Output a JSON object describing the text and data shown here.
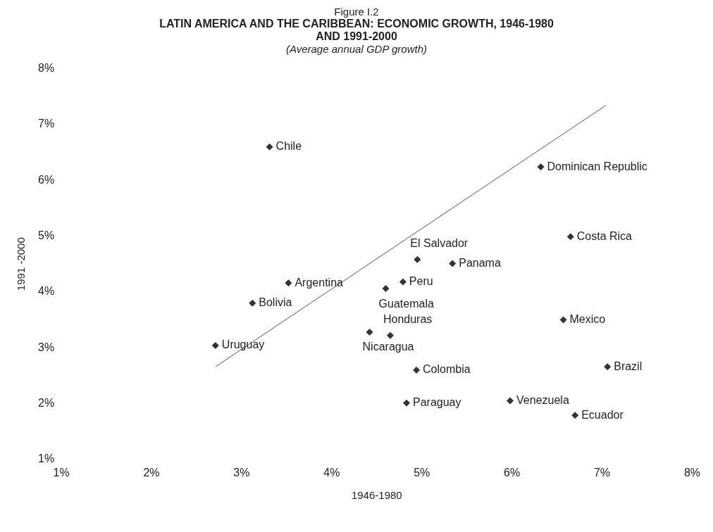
{
  "chart_data": {
    "type": "scatter",
    "title": "LATIN AMERICA AND THE CARIBBEAN: ECONOMIC GROWTH, 1946-1980 AND 1991-2000",
    "subtitle": "(Average annual GDP growth)",
    "xlabel": "1946-1980",
    "ylabel": "1991 -2000",
    "xlim": [
      1,
      8
    ],
    "ylim": [
      1,
      8
    ],
    "xticks": [
      {
        "value": 1,
        "label": "1%"
      },
      {
        "value": 2,
        "label": "2%"
      },
      {
        "value": 3,
        "label": "3%"
      },
      {
        "value": 4,
        "label": "4%"
      },
      {
        "value": 5,
        "label": "5%"
      },
      {
        "value": 6,
        "label": "6%"
      },
      {
        "value": 7,
        "label": "7%"
      },
      {
        "value": 8,
        "label": "8%"
      }
    ],
    "yticks": [
      {
        "value": 1,
        "label": "1%"
      },
      {
        "value": 2,
        "label": "2%"
      },
      {
        "value": 3,
        "label": "3%"
      },
      {
        "value": 4,
        "label": "4%"
      },
      {
        "value": 5,
        "label": "5%"
      },
      {
        "value": 6,
        "label": "6%"
      },
      {
        "value": 7,
        "label": "7%"
      },
      {
        "value": 8,
        "label": "8%"
      }
    ],
    "grid": false,
    "legend": false,
    "marker": "diamond",
    "series": [
      {
        "type": "scatter",
        "color": "#333333",
        "x": [
          3.31,
          6.32,
          6.65,
          4.95,
          5.34,
          3.52,
          4.79,
          4.6,
          3.12,
          6.57,
          4.42,
          4.65,
          2.71,
          7.06,
          4.94,
          4.83,
          5.98,
          6.7
        ],
        "values": [
          6.6,
          6.24,
          4.99,
          4.58,
          4.51,
          4.16,
          4.18,
          4.06,
          3.8,
          3.5,
          3.28,
          3.22,
          3.04,
          2.66,
          2.6,
          2.01,
          2.05,
          1.79
        ]
      },
      {
        "type": "line",
        "color": "#555555",
        "marker": "none",
        "x": [
          2.71,
          7.04
        ],
        "values": [
          2.66,
          7.34
        ]
      }
    ],
    "annotations": [
      "Figure I.2",
      {
        "text": "Chile",
        "x": 3.31,
        "y": 6.6
      },
      {
        "text": "Dominican Republic",
        "x": 6.32,
        "y": 6.24
      },
      {
        "text": "Costa Rica",
        "x": 6.65,
        "y": 4.99
      },
      {
        "text": "El Salvador",
        "x": 4.95,
        "y": 4.58
      },
      {
        "text": "Panama",
        "x": 5.34,
        "y": 4.51
      },
      {
        "text": "Argentina",
        "x": 3.52,
        "y": 4.16
      },
      {
        "text": "Peru",
        "x": 4.79,
        "y": 4.18
      },
      {
        "text": "Guatemala",
        "x": 4.6,
        "y": 4.06
      },
      {
        "text": "Bolivia",
        "x": 3.12,
        "y": 3.8
      },
      {
        "text": "Mexico",
        "x": 6.57,
        "y": 3.5
      },
      {
        "text": "Nicaragua",
        "x": 4.42,
        "y": 3.28
      },
      {
        "text": "Honduras",
        "x": 4.65,
        "y": 3.22
      },
      {
        "text": "Uruguay",
        "x": 2.71,
        "y": 3.04
      },
      {
        "text": "Brazil",
        "x": 7.06,
        "y": 2.66
      },
      {
        "text": "Colombia",
        "x": 4.94,
        "y": 2.6
      },
      {
        "text": "Paraguay",
        "x": 4.83,
        "y": 2.01
      },
      {
        "text": "Venezuela",
        "x": 5.98,
        "y": 2.05
      },
      {
        "text": "Ecuador",
        "x": 6.7,
        "y": 1.79
      }
    ]
  }
}
